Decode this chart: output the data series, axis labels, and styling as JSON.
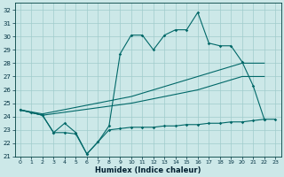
{
  "background_color": "#cce8e8",
  "grid_color": "#a0cccc",
  "line_color": "#006868",
  "xlabel": "Humidex (Indice chaleur)",
  "xlim": [
    -0.5,
    23.5
  ],
  "ylim": [
    21,
    32.5
  ],
  "yticks": [
    21,
    22,
    23,
    24,
    25,
    26,
    27,
    28,
    29,
    30,
    31,
    32
  ],
  "xticks": [
    0,
    1,
    2,
    3,
    4,
    5,
    6,
    7,
    8,
    9,
    10,
    11,
    12,
    13,
    14,
    15,
    16,
    17,
    18,
    19,
    20,
    21,
    22,
    23
  ],
  "line_top_x": [
    0,
    1,
    2,
    3,
    4,
    5,
    6,
    7,
    8,
    9,
    10,
    11,
    12,
    13,
    14,
    15,
    16,
    17,
    18,
    19,
    20,
    21,
    22
  ],
  "line_top_y": [
    24.5,
    24.3,
    24.1,
    22.8,
    23.5,
    22.8,
    21.2,
    22.1,
    23.3,
    28.7,
    30.1,
    30.1,
    29.0,
    30.1,
    30.5,
    30.5,
    31.8,
    29.5,
    29.3,
    29.3,
    28.1,
    26.3,
    23.8
  ],
  "line_upper_x": [
    0,
    2,
    10,
    16,
    18,
    20,
    22
  ],
  "line_upper_y": [
    24.5,
    24.2,
    25.5,
    27.0,
    27.5,
    28.0,
    28.0
  ],
  "line_lower_x": [
    0,
    2,
    10,
    16,
    18,
    20,
    22
  ],
  "line_lower_y": [
    24.5,
    24.1,
    25.0,
    26.0,
    26.5,
    27.0,
    27.0
  ],
  "line_bot_x": [
    0,
    1,
    2,
    3,
    4,
    5,
    6,
    7,
    8,
    9,
    10,
    11,
    12,
    13,
    14,
    15,
    16,
    17,
    18,
    19,
    20,
    21,
    22,
    23
  ],
  "line_bot_y": [
    24.5,
    24.3,
    24.1,
    22.8,
    22.8,
    22.7,
    21.2,
    22.1,
    23.0,
    23.1,
    23.2,
    23.2,
    23.2,
    23.3,
    23.3,
    23.4,
    23.4,
    23.5,
    23.5,
    23.6,
    23.6,
    23.7,
    23.8,
    23.8
  ]
}
